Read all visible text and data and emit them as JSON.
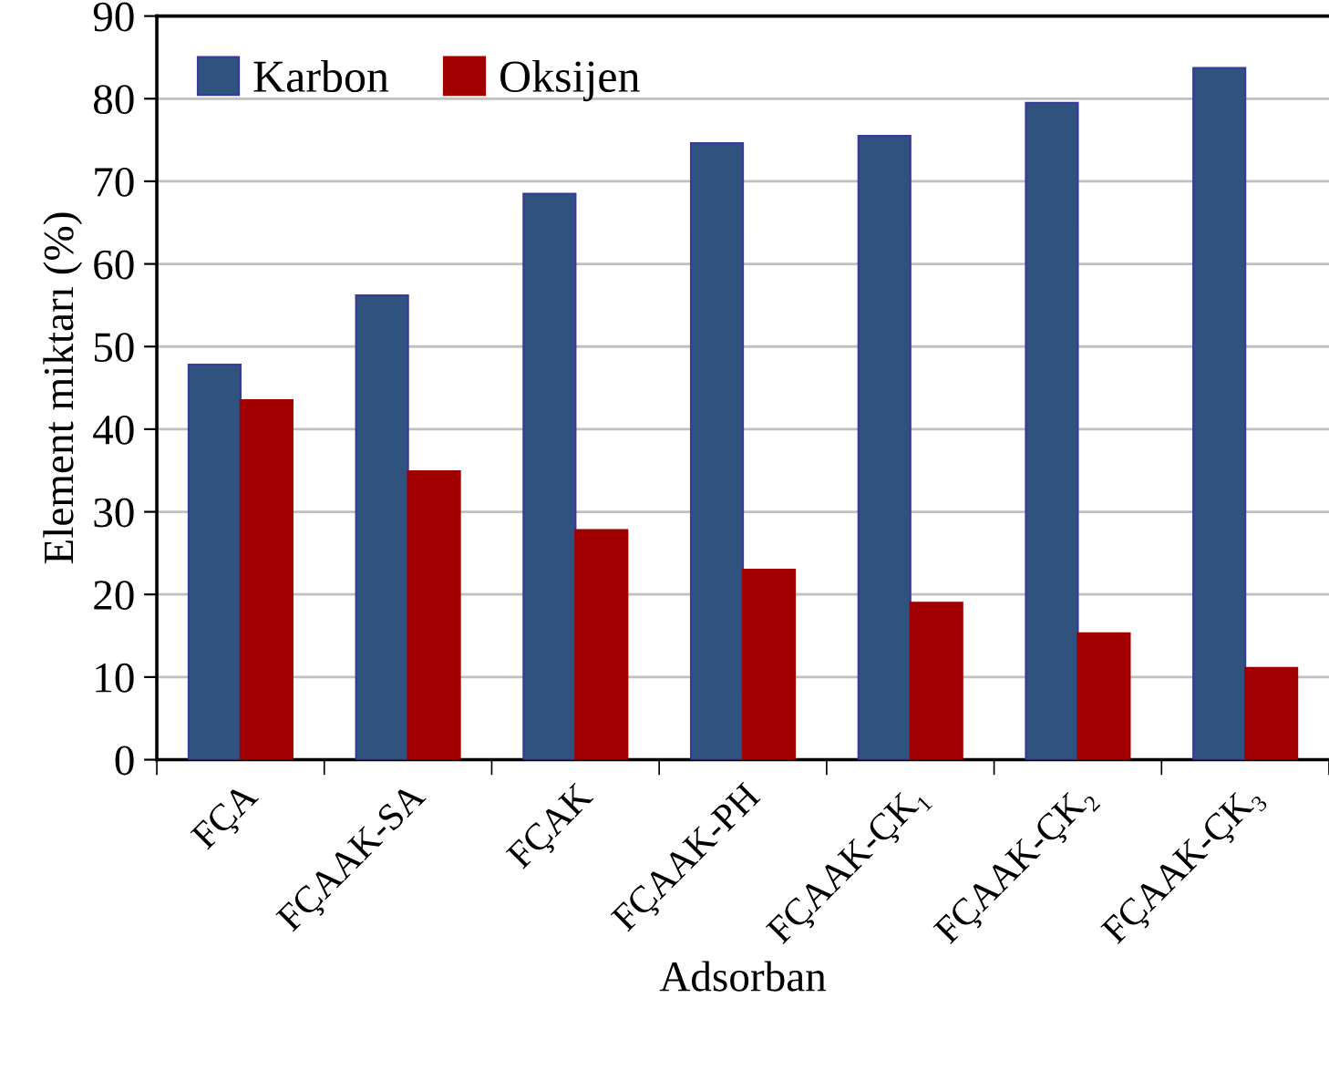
{
  "chart_data": {
    "type": "bar",
    "xlabel": "Adsorban",
    "ylabel": "Element miktarı (%)",
    "categories": [
      "FÇA",
      "FÇAAK-SA",
      "FÇAK",
      "FÇAAK-PH",
      "FÇAAK-ÇK₁",
      "FÇAAK-ÇK₂",
      "FÇAAK-ÇK₃"
    ],
    "series": [
      {
        "name": "Karbon",
        "color": "#30527f",
        "values": [
          47.8,
          56.2,
          68.5,
          74.6,
          75.5,
          79.5,
          83.7
        ]
      },
      {
        "name": "Oksijen",
        "color": "#a00000",
        "values": [
          43.5,
          34.9,
          27.8,
          23.0,
          19.0,
          15.3,
          11.1
        ]
      }
    ],
    "ylim": [
      0,
      90
    ],
    "yticks": [
      0,
      10,
      20,
      30,
      40,
      50,
      60,
      70,
      80,
      90
    ],
    "grid": "y",
    "legend": "top left"
  }
}
